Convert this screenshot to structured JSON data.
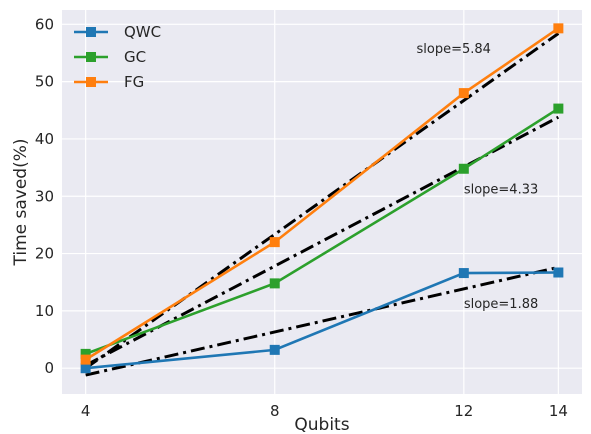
{
  "chart_data": {
    "type": "line",
    "xlabel": "Qubits",
    "ylabel": "Time saved(%)",
    "x": [
      4,
      8,
      12,
      14
    ],
    "xticks": [
      "4",
      "8",
      "12",
      "14"
    ],
    "xlim": [
      3.5,
      14.5
    ],
    "ylim": [
      -4.5,
      62.5
    ],
    "yticks": [
      "0",
      "10",
      "20",
      "30",
      "40",
      "50",
      "60"
    ],
    "grid": true,
    "legend_position": "top-left",
    "series": [
      {
        "name": "QWC",
        "color": "#1f77b4",
        "values": [
          0.0,
          3.2,
          16.6,
          16.7
        ]
      },
      {
        "name": "GC",
        "color": "#2ca02c",
        "values": [
          2.5,
          14.8,
          34.8,
          45.3
        ]
      },
      {
        "name": "FG",
        "color": "#ff7f0e",
        "values": [
          1.5,
          22.0,
          48.0,
          59.3
        ]
      }
    ],
    "fit_lines": [
      {
        "slope": 1.88,
        "x": [
          4,
          14
        ],
        "y": [
          -1.2,
          17.6
        ]
      },
      {
        "slope": 4.33,
        "x": [
          4,
          14
        ],
        "y": [
          0.5,
          43.8
        ]
      },
      {
        "slope": 5.84,
        "x": [
          4,
          14
        ],
        "y": [
          0.0,
          58.4
        ]
      }
    ],
    "annotations": [
      {
        "text": "slope=5.84",
        "x": 11.0,
        "y": 55.0
      },
      {
        "text": "slope=4.33",
        "x": 12.0,
        "y": 30.5
      },
      {
        "text": "slope=1.88",
        "x": 12.0,
        "y": 10.5
      }
    ]
  }
}
